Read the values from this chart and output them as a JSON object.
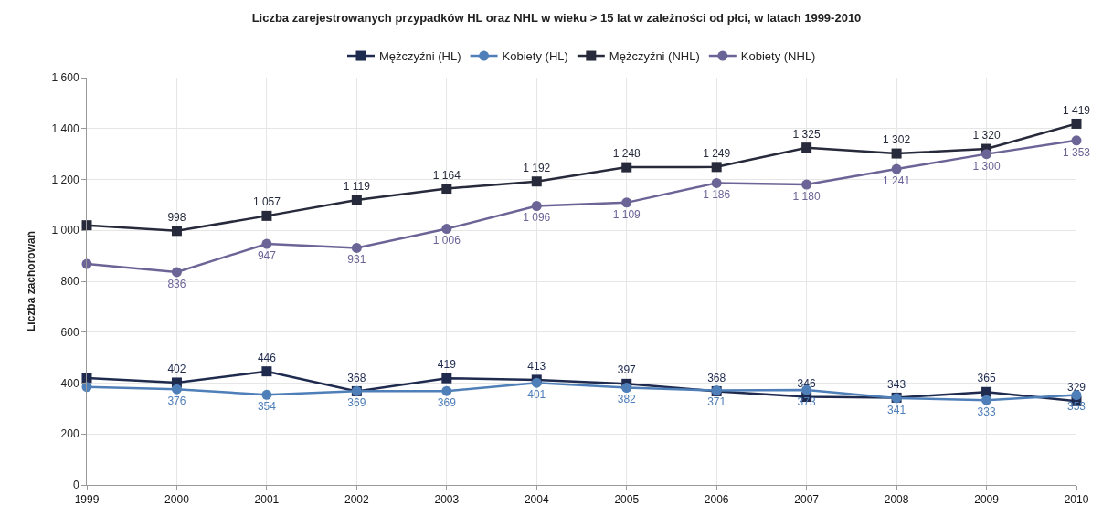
{
  "chart_data": {
    "type": "line",
    "title": "Liczba zarejestrowanych przypadków HL oraz NHL w wieku > 15 lat w zależności od płci, w latach 1999-2010",
    "ylabel": "Liczba zachorowań",
    "categories": [
      "1999",
      "2000",
      "2001",
      "2002",
      "2003",
      "2004",
      "2005",
      "2006",
      "2007",
      "2008",
      "2009",
      "2010"
    ],
    "series": [
      {
        "name": "Mężczyźni (HL)",
        "color": "#1f2a4f",
        "marker": "square",
        "values": [
          420,
          402,
          446,
          368,
          419,
          413,
          397,
          368,
          346,
          343,
          365,
          329
        ],
        "value_labels": [
          null,
          "402",
          "446",
          "368",
          "419",
          "413",
          "397",
          "368",
          "346",
          "343",
          "365",
          "329"
        ]
      },
      {
        "name": "Kobiety (HL)",
        "color": "#4f7fb8",
        "marker": "circle",
        "values": [
          385,
          376,
          354,
          369,
          369,
          401,
          382,
          371,
          373,
          341,
          333,
          353
        ],
        "value_labels": [
          null,
          "376",
          "354",
          "369",
          "369",
          "401",
          "382",
          "371",
          "373",
          "341",
          "333",
          "353"
        ]
      },
      {
        "name": "Mężczyźni (NHL)",
        "color": "#262a3a",
        "marker": "square",
        "values": [
          1020,
          998,
          1057,
          1119,
          1164,
          1192,
          1248,
          1249,
          1325,
          1302,
          1320,
          1419
        ],
        "value_labels": [
          null,
          "998",
          "1 057",
          "1 119",
          "1 164",
          "1 192",
          "1 248",
          "1 249",
          "1 325",
          "1 302",
          "1 320",
          "1 419"
        ]
      },
      {
        "name": "Kobiety (NHL)",
        "color": "#6b6496",
        "marker": "circle",
        "values": [
          868,
          836,
          947,
          931,
          1006,
          1096,
          1109,
          1186,
          1180,
          1241,
          1300,
          1353
        ],
        "value_labels": [
          null,
          "836",
          "947",
          "931",
          "1 006",
          "1 096",
          "1 109",
          "1 186",
          "1 180",
          "1 241",
          "1 300",
          "1 353"
        ]
      }
    ],
    "ylim": [
      0,
      1600
    ],
    "yticks": [
      0,
      200,
      400,
      600,
      800,
      {
        "value": 1000,
        "label": "1 000"
      },
      {
        "value": 1200,
        "label": "1 200"
      },
      {
        "value": 1400,
        "label": "1 400"
      },
      {
        "value": 1600,
        "label": "1 600"
      }
    ],
    "grid": true,
    "legend": "top",
    "line_style": "solid"
  }
}
